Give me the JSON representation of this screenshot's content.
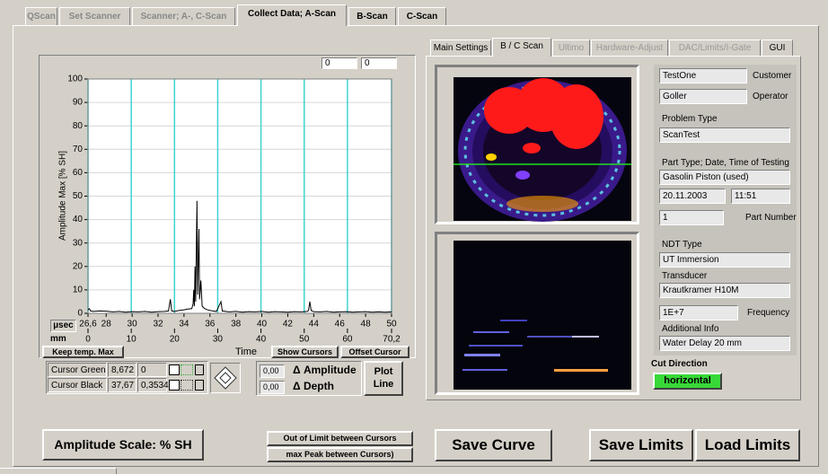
{
  "tabs": [
    "QScan",
    "Set Scanner",
    "Scanner; A-, C-Scan",
    "Collect Data; A-Scan",
    "B-Scan",
    "C-Scan"
  ],
  "right_tabs": [
    "Main Settings",
    "B / C Scan",
    "Ultimo",
    "Hardware-Adjust",
    "DAC/Limits/I-Gate",
    "GUI"
  ],
  "plot_header": [
    "0",
    "0"
  ],
  "chart_data": {
    "type": "line",
    "y_label": "Amplitude Max [% SH]",
    "x_label": "Time",
    "x_unit_label": "µsec",
    "x2_unit_label": "mm",
    "xlim": [
      26.6,
      50
    ],
    "xticks": [
      {
        "value": 26.6,
        "label": "26,6"
      },
      28,
      30,
      32,
      34,
      36,
      38,
      40,
      42,
      44,
      46,
      48,
      50
    ],
    "x2lim": [
      0,
      70.2
    ],
    "x2ticks": [
      0,
      10,
      20,
      30,
      40,
      50,
      60,
      {
        "value": 70.2,
        "label": "70,2"
      }
    ],
    "ylim": [
      0,
      100
    ],
    "yticks": [
      0,
      10,
      20,
      30,
      40,
      50,
      60,
      70,
      80,
      90,
      100
    ],
    "grid": true,
    "x2grid_color": "#3fd3cf",
    "ygrid_color": "#d6d6d6",
    "x": [
      26.6,
      26.7,
      26.8,
      27,
      27.5,
      28,
      28.5,
      29,
      29.5,
      30,
      30.5,
      31,
      31.5,
      32,
      32.5,
      32.8,
      32.95,
      33.05,
      33.3,
      33.6,
      34,
      34.3,
      34.6,
      34.7,
      34.75,
      34.8,
      34.85,
      34.9,
      35,
      35.05,
      35.15,
      35.2,
      35.3,
      35.4,
      35.6,
      35.8,
      36.2,
      36.5,
      36.85,
      36.95,
      37.5,
      38,
      38.5,
      39,
      39.5,
      40,
      40.5,
      41,
      41.5,
      42,
      42.5,
      43,
      43.5,
      43.6,
      43.7,
      43.8,
      44,
      44.5,
      45,
      45.5,
      46,
      46.5,
      47,
      47.5,
      48,
      48.5,
      49,
      49.5,
      50
    ],
    "series": [
      {
        "color": "#000000",
        "values": [
          1.5,
          2,
          1,
          0.8,
          1,
          0.9,
          0.6,
          0.8,
          0.5,
          0.7,
          0.6,
          0.8,
          0.5,
          0.7,
          0.8,
          1,
          6,
          1,
          0.8,
          1.2,
          1.5,
          1.8,
          2,
          4,
          10,
          3,
          20,
          5,
          48,
          8,
          36,
          6,
          14,
          3,
          2,
          1.5,
          1,
          0.8,
          5,
          1,
          0.6,
          0.8,
          0.5,
          0.7,
          0.6,
          0.8,
          0.5,
          0.7,
          0.6,
          0.5,
          0.7,
          0.6,
          0.8,
          1.2,
          5,
          1.2,
          0.7,
          0.6,
          0.8,
          0.5,
          0.6,
          0.7,
          0.5,
          0.6,
          0.7,
          0.5,
          0.6,
          0.5,
          0.6
        ]
      }
    ]
  },
  "plot_buttons": [
    "Keep temp. Max",
    "Show Cursors",
    "Offset Cursor"
  ],
  "cursors": [
    {
      "label": "Cursor Green",
      "x": "8,672",
      "y": "0"
    },
    {
      "label": "Cursor Black",
      "x": "37,67",
      "y": "0,3534"
    }
  ],
  "deltas": [
    {
      "value": "0,00",
      "label": "Δ Amplitude"
    },
    {
      "value": "0,00",
      "label": "Δ Depth"
    }
  ],
  "plot_line_button": "Plot Line",
  "info": {
    "customer": "TestOne",
    "customer_label": "Customer",
    "operator": "Goller",
    "operator_label": "Operator",
    "problem_type_label": "Problem Type",
    "problem_type": "ScanTest",
    "part_label": "Part Type; Date, Time of Testing",
    "part_type": "Gasolin Piston (used)",
    "date": "20.11.2003",
    "time": "11:51",
    "part_number": "1",
    "part_number_label": "Part Number",
    "ndt_label": "NDT Type",
    "ndt_type": "UT Immersion",
    "transducer_label": "Transducer",
    "transducer": "Krautkramer H10M",
    "frequency": "1E+7",
    "frequency_label": "Frequency",
    "additional_label": "Additional Info",
    "additional": "Water Delay 20 mm"
  },
  "cut_direction_label": "Cut Direction",
  "cut_direction": "horizontal",
  "buttons": {
    "amplitude_scale": "Amplitude Scale: % SH",
    "out_of_limit": "Out of Limit between Cursors",
    "max_peak": "max Peak between Cursors)",
    "save_curve": "Save Curve",
    "save_limits": "Save Limits",
    "load_limits": "Load Limits"
  }
}
